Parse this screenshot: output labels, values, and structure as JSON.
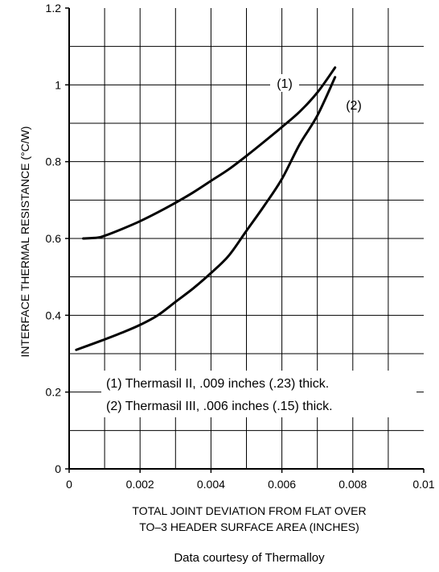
{
  "chart_data": {
    "type": "line",
    "xlabel": [
      "TOTAL JOINT DEVIATION FROM FLAT OVER",
      "TO–3 HEADER SURFACE AREA (INCHES)"
    ],
    "ylabel": "INTERFACE THERMAL RESISTANCE (°C/W)",
    "xlim": [
      0,
      0.01
    ],
    "ylim": [
      0,
      1.2
    ],
    "x_ticks": [
      "0",
      "0.002",
      "0.004",
      "0.006",
      "0.008",
      "0.01"
    ],
    "y_ticks": [
      "0",
      "0.2",
      "0.4",
      "0.6",
      "0.8",
      "1",
      "1.2"
    ],
    "grid": true,
    "series": [
      {
        "name": "(1)",
        "x": [
          0.0004,
          0.0008,
          0.001,
          0.0015,
          0.002,
          0.0025,
          0.003,
          0.0035,
          0.004,
          0.0045,
          0.005,
          0.0055,
          0.006,
          0.0065,
          0.007,
          0.0075
        ],
        "y": [
          0.6,
          0.602,
          0.607,
          0.625,
          0.645,
          0.668,
          0.693,
          0.72,
          0.75,
          0.78,
          0.815,
          0.852,
          0.89,
          0.93,
          0.98,
          1.045
        ]
      },
      {
        "name": "(2)",
        "x": [
          0.0002,
          0.0005,
          0.001,
          0.0015,
          0.002,
          0.0025,
          0.003,
          0.0035,
          0.004,
          0.0045,
          0.005,
          0.0055,
          0.006,
          0.0065,
          0.007,
          0.0075
        ],
        "y": [
          0.31,
          0.32,
          0.337,
          0.355,
          0.375,
          0.4,
          0.435,
          0.47,
          0.51,
          0.555,
          0.62,
          0.685,
          0.755,
          0.845,
          0.92,
          1.02
        ]
      }
    ],
    "annotations": [
      "(1)",
      "(2)"
    ],
    "legend": [
      "(1) Thermasil II, .009 inches (.23) thick.",
      "(2) Thermasil III, .006 inches (.15) thick."
    ]
  },
  "credit": "Data courtesy of Thermalloy"
}
